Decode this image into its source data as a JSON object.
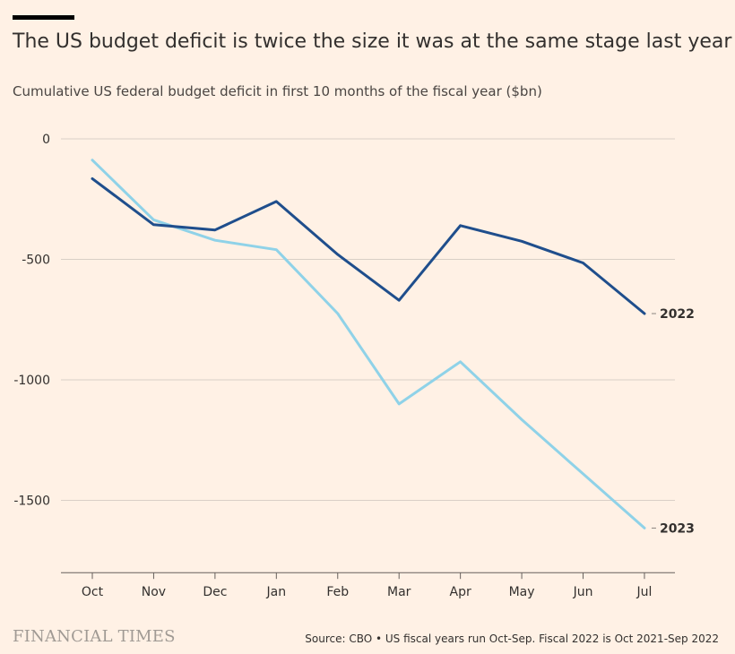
{
  "page": {
    "title": "The US budget deficit is twice the size it was at the same stage last year",
    "subtitle": "Cumulative US federal budget deficit in first 10 months of the fiscal year ($bn)",
    "logo": "FINANCIAL TIMES",
    "source": "Source: CBO • US fiscal years run Oct-Sep. Fiscal 2022 is Oct 2021-Sep 2022"
  },
  "colors": {
    "background": "#fff1e5",
    "series_2022": "#1f4e8c",
    "series_2023": "#8fd2e8",
    "grid": "#d9cfc6",
    "axis": "#66605c",
    "text": "#33302e"
  },
  "chart_data": {
    "type": "line",
    "title": "The US budget deficit is twice the size it was at the same stage last year",
    "subtitle": "Cumulative US federal budget deficit in first 10 months of the fiscal year ($bn)",
    "categories": [
      "Oct",
      "Nov",
      "Dec",
      "Jan",
      "Feb",
      "Mar",
      "Apr",
      "May",
      "Jun",
      "Jul"
    ],
    "ylim": [
      -1800,
      0
    ],
    "yticks": [
      0,
      -500,
      -1000,
      -1500
    ],
    "ytick_labels": [
      "0",
      "-500",
      "-1000",
      "-1500"
    ],
    "grid": true,
    "series": [
      {
        "name": "2022",
        "color": "#1f4e8c",
        "values": [
          -165,
          -356,
          -378,
          -260,
          -480,
          -670,
          -360,
          -425,
          -515,
          -725
        ]
      },
      {
        "name": "2023",
        "color": "#8fd2e8",
        "values": [
          -88,
          -336,
          -421,
          -460,
          -725,
          -1100,
          -925,
          -1165,
          -1390,
          -1615
        ]
      }
    ]
  }
}
